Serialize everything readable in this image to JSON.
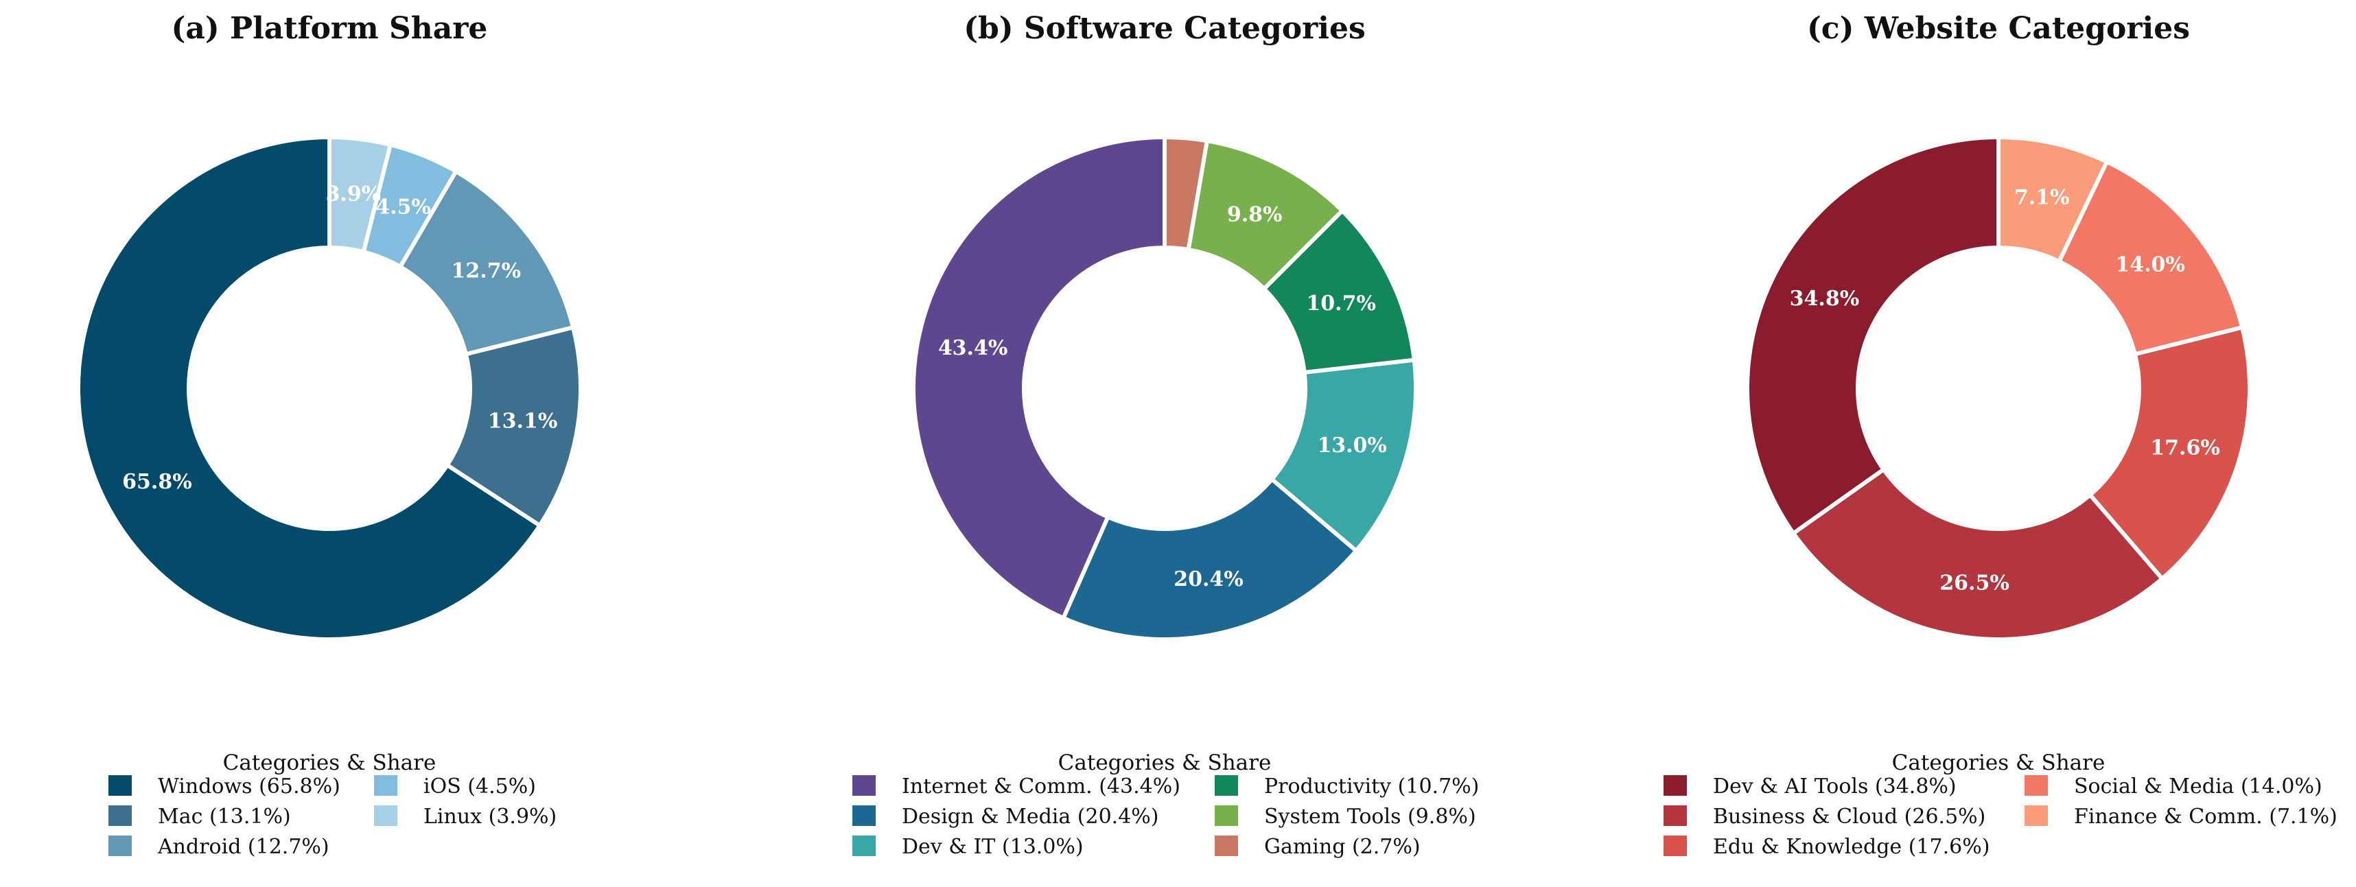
{
  "chart_data": [
    {
      "type": "pie",
      "title": "(a) Platform Share",
      "legend_title": "Categories & Share",
      "legend_placement": "bottom",
      "donut": true,
      "categories": [
        "Windows",
        "Mac",
        "Android",
        "iOS",
        "Linux"
      ],
      "values": [
        65.8,
        13.1,
        12.7,
        4.5,
        3.9
      ],
      "value_labels": [
        "65.8%",
        "13.1%",
        "12.7%",
        "4.5%",
        "3.9%"
      ],
      "legend_labels": [
        "Windows (65.8%)",
        "Mac (13.1%)",
        "Android (12.7%)",
        "iOS (4.5%)",
        "Linux (3.9%)"
      ],
      "colors": [
        "#034A6B",
        "#3D6F8F",
        "#6098B6",
        "#82BCDE",
        "#A7CFE5"
      ]
    },
    {
      "type": "pie",
      "title": "(b) Software Categories",
      "legend_title": "Categories & Share",
      "legend_placement": "bottom",
      "donut": true,
      "categories": [
        "Internet & Comm.",
        "Design & Media",
        "Dev & IT",
        "Productivity",
        "System Tools",
        "Gaming"
      ],
      "values": [
        43.4,
        20.4,
        13.0,
        10.7,
        9.8,
        2.7
      ],
      "value_labels": [
        "43.4%",
        "20.4%",
        "13.0%",
        "10.7%",
        "9.8%",
        ""
      ],
      "legend_labels": [
        "Internet & Comm. (43.4%)",
        "Design & Media (20.4%)",
        "Dev & IT (13.0%)",
        "Productivity (10.7%)",
        "System Tools (9.8%)",
        "Gaming (2.7%)"
      ],
      "colors": [
        "#5E478E",
        "#1D6893",
        "#38A7A5",
        "#12885A",
        "#77B04C",
        "#C87863"
      ]
    },
    {
      "type": "pie",
      "title": "(c) Website Categories",
      "legend_title": "Categories & Share",
      "legend_placement": "bottom",
      "donut": true,
      "categories": [
        "Dev & AI Tools",
        "Business & Cloud",
        "Edu & Knowledge",
        "Social & Media",
        "Finance & Comm."
      ],
      "values": [
        34.8,
        26.5,
        17.6,
        14.0,
        7.1
      ],
      "value_labels": [
        "34.8%",
        "26.5%",
        "17.6%",
        "14.0%",
        "7.1%"
      ],
      "legend_labels": [
        "Dev & AI Tools (34.8%)",
        "Business & Cloud (26.5%)",
        "Edu & Knowledge (17.6%)",
        "Social & Media (14.0%)",
        "Finance & Comm. (7.1%)"
      ],
      "colors": [
        "#8B1C2D",
        "#B3363F",
        "#D8534C",
        "#F27765",
        "#FA9C79"
      ]
    }
  ]
}
